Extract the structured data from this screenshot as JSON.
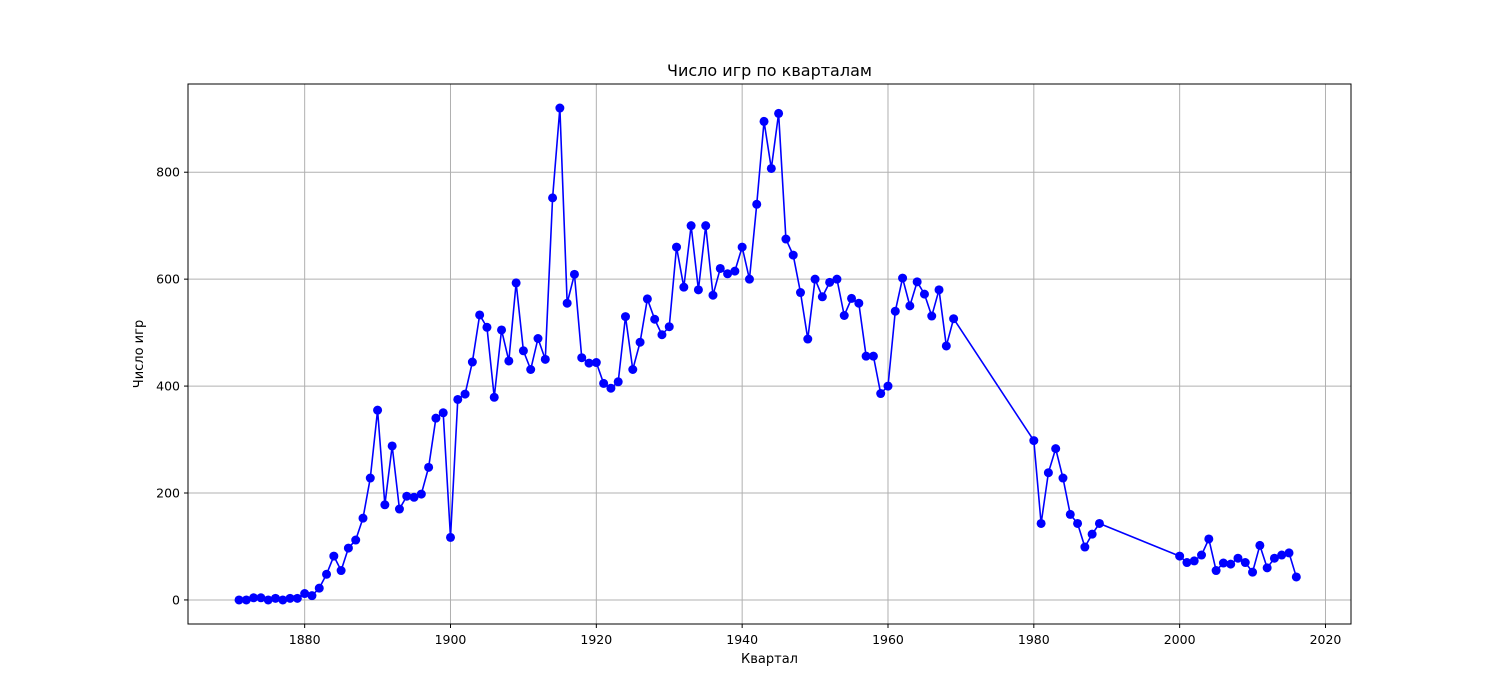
{
  "chart_data": {
    "type": "line",
    "title": "Число игр по кварталам",
    "xlabel": "Квартал",
    "ylabel": "Число игр",
    "xlim": [
      1864,
      2023.5
    ],
    "ylim": [
      -45,
      965
    ],
    "xticks": [
      1880,
      1900,
      1920,
      1940,
      1960,
      1980,
      2000,
      2020
    ],
    "yticks": [
      0,
      200,
      400,
      600,
      800
    ],
    "grid": true,
    "line_color": "#0000ff",
    "marker": "circle",
    "series": [
      {
        "x": [
          1871,
          1872,
          1873,
          1874,
          1875,
          1876,
          1877,
          1878,
          1879,
          1880,
          1881,
          1882,
          1883,
          1884,
          1885,
          1886,
          1887,
          1888,
          1889,
          1890,
          1891,
          1892,
          1893,
          1894,
          1895,
          1896,
          1897,
          1898,
          1899,
          1900,
          1901,
          1902,
          1903,
          1904,
          1905,
          1906,
          1907,
          1908,
          1909,
          1910,
          1911,
          1912,
          1913,
          1914,
          1915,
          1916,
          1917,
          1918,
          1919,
          1920,
          1921,
          1922,
          1923,
          1924,
          1925,
          1926,
          1927,
          1928,
          1929,
          1930,
          1931,
          1932,
          1933,
          1934,
          1935,
          1936,
          1937,
          1938,
          1939,
          1940,
          1941,
          1942,
          1943,
          1944,
          1945,
          1946,
          1947,
          1948,
          1949,
          1950,
          1951,
          1952,
          1953,
          1954,
          1955,
          1956,
          1957,
          1958,
          1959,
          1960,
          1961,
          1962,
          1963,
          1964,
          1965,
          1966,
          1967,
          1968,
          1969,
          1980,
          1981,
          1982,
          1983,
          1984,
          1985,
          1986,
          1987,
          1988,
          1989,
          2000,
          2001,
          2002,
          2003,
          2004,
          2005,
          2006,
          2007,
          2008,
          2009,
          2010,
          2011,
          2012,
          2013,
          2014,
          2015,
          2016
        ],
        "values": [
          0,
          0,
          4,
          4,
          0,
          3,
          0,
          3,
          3,
          12,
          8,
          22,
          48,
          82,
          55,
          97,
          112,
          153,
          228,
          355,
          178,
          288,
          170,
          194,
          192,
          198,
          248,
          340,
          350,
          117,
          375,
          385,
          445,
          533,
          510,
          379,
          505,
          447,
          593,
          466,
          431,
          489,
          450,
          752,
          920,
          555,
          609,
          453,
          443,
          444,
          405,
          396,
          408,
          530,
          431,
          482,
          563,
          525,
          496,
          511,
          660,
          585,
          700,
          580,
          700,
          570,
          620,
          610,
          615,
          660,
          600,
          740,
          895,
          807,
          910,
          675,
          645,
          575,
          488,
          600,
          567,
          594,
          600,
          532,
          564,
          555,
          456,
          456,
          386,
          400,
          540,
          602,
          550,
          595,
          572,
          531,
          580,
          475,
          526,
          298,
          143,
          238,
          283,
          228,
          160,
          143,
          99,
          123,
          143,
          82,
          70,
          73,
          84,
          114,
          55,
          69,
          67,
          78,
          70,
          52,
          102,
          60,
          78,
          84,
          88,
          43
        ]
      }
    ]
  }
}
